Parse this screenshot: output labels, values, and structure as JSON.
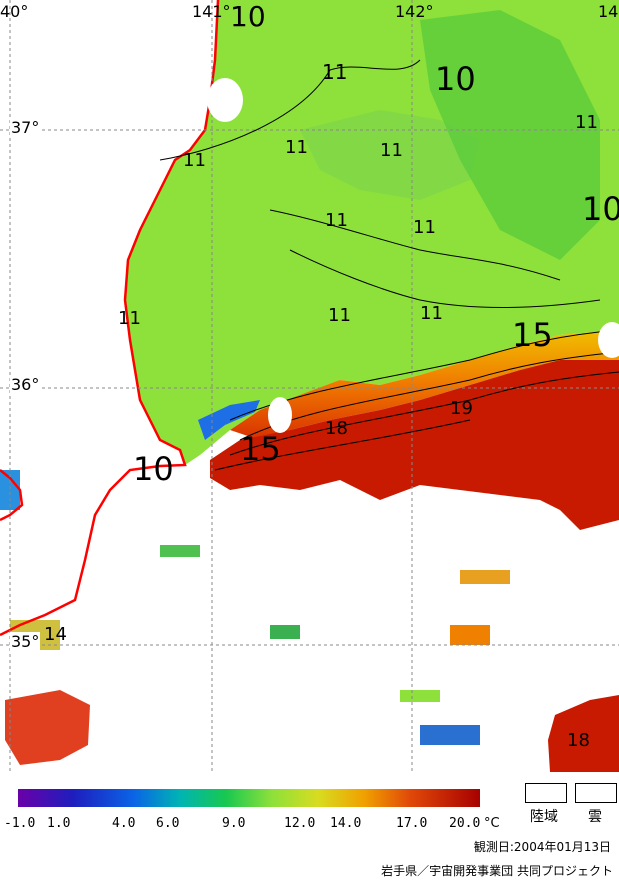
{
  "map": {
    "longitude_labels": [
      "40°",
      "141°",
      "142°",
      "14"
    ],
    "latitude_labels": [
      "37°",
      "36°",
      "35°"
    ],
    "contour_labels": [
      "10",
      "11",
      "11",
      "10",
      "11",
      "11",
      "11",
      "11",
      "11",
      "10",
      "11",
      "11",
      "11",
      "11",
      "15",
      "19",
      "18",
      "15",
      "10",
      "14",
      "18"
    ],
    "colors": {
      "cold_sea": "#8ee03a",
      "warm_sea": "#c81a00",
      "frontal_zone": "#f0a000",
      "land_and_cloud": "#ffffff",
      "coastline": "#ff0000"
    }
  },
  "colorbar": {
    "ticks": [
      "-1.0",
      "1.0",
      "4.0",
      "6.0",
      "9.0",
      "12.0",
      "14.0",
      "17.0",
      "20.0"
    ],
    "unit": "°C",
    "range": [
      -1.0,
      20.0
    ]
  },
  "legend": {
    "land_label": "陸域",
    "cloud_label": "雲"
  },
  "observation_date": "観測日:2004年01月13日",
  "credit": "岩手県／宇宙開発事業団 共同プロジェクト"
}
